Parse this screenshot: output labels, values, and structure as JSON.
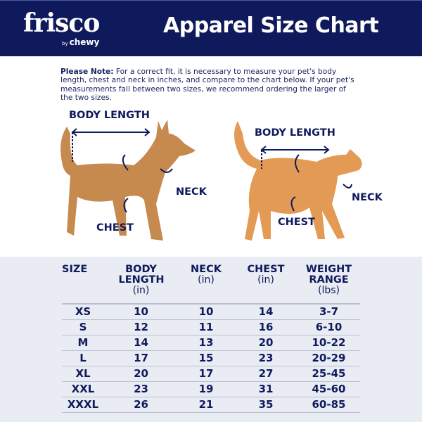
{
  "header": {
    "logo": "frisco",
    "logo_sub_by": "by",
    "logo_sub_brand": "chewy",
    "title": "Apparel Size Chart",
    "bg_color": "#0f1a5c"
  },
  "note": {
    "label": "Please Note:",
    "text": " For a correct fit, it is necessary to measure your pet's body length, chest and neck in inches, and compare to the chart below. If your pet's measurements fall between two sizes, we recommend ordering the larger of the two sizes."
  },
  "dog": {
    "body_length": "BODY LENGTH",
    "neck": "NECK",
    "chest": "CHEST"
  },
  "cat": {
    "body_length": "BODY LENGTH",
    "neck": "NECK",
    "chest": "CHEST"
  },
  "table": {
    "headers": [
      {
        "title": "SIZE",
        "unit": ""
      },
      {
        "title": "BODY LENGTH",
        "unit": "(in)"
      },
      {
        "title": "NECK",
        "unit": "(in)"
      },
      {
        "title": "CHEST",
        "unit": "(in)"
      },
      {
        "title": "WEIGHT RANGE",
        "unit": "(lbs)"
      }
    ],
    "rows": [
      [
        "XS",
        "10",
        "10",
        "14",
        "3-7"
      ],
      [
        "S",
        "12",
        "11",
        "16",
        "6-10"
      ],
      [
        "M",
        "14",
        "13",
        "20",
        "10-22"
      ],
      [
        "L",
        "17",
        "15",
        "23",
        "20-29"
      ],
      [
        "XL",
        "20",
        "17",
        "27",
        "25-45"
      ],
      [
        "XXL",
        "23",
        "19",
        "31",
        "45-60"
      ],
      [
        "XXXL",
        "26",
        "21",
        "35",
        "60-85"
      ]
    ]
  }
}
